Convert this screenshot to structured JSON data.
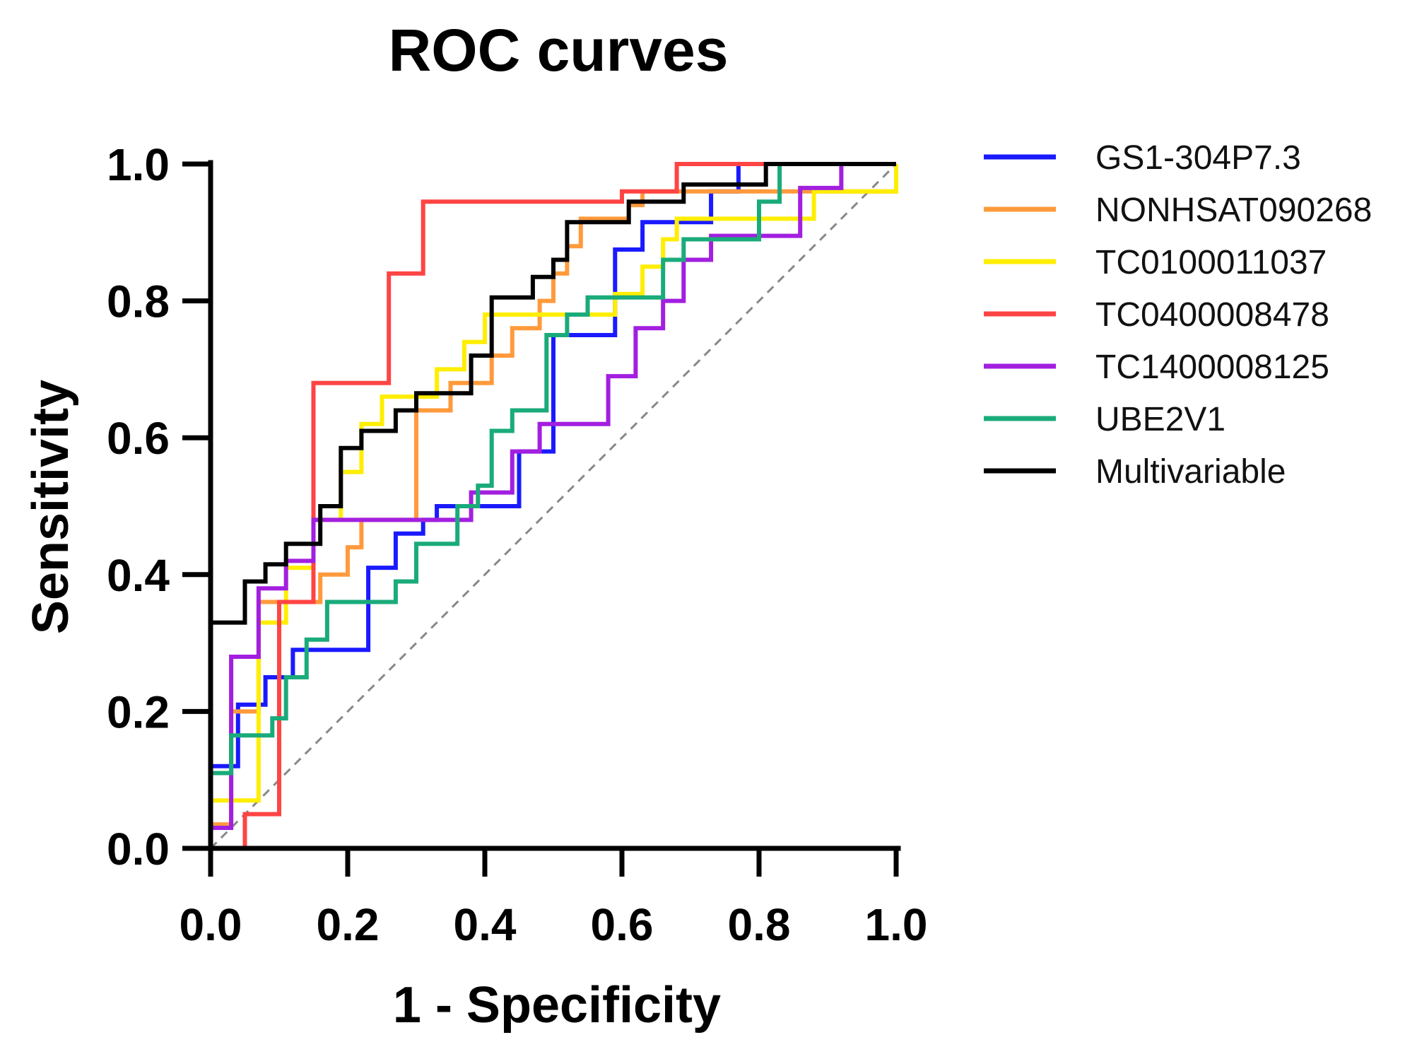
{
  "chart_data": {
    "type": "line",
    "title": "ROC curves",
    "xlabel": "1 - Specificity",
    "ylabel": "Sensitivity",
    "xlim": [
      0,
      1
    ],
    "ylim": [
      0,
      1
    ],
    "x_ticks": [
      "0.0",
      "0.2",
      "0.4",
      "0.6",
      "0.8",
      "1.0"
    ],
    "y_ticks": [
      "0.0",
      "0.2",
      "0.4",
      "0.6",
      "0.8",
      "1.0"
    ],
    "grid": false,
    "legend_position": "top-right outside",
    "reference_line": {
      "style": "dashed",
      "color": "#888888",
      "from": [
        0,
        0
      ],
      "to": [
        1,
        1
      ]
    },
    "series": [
      {
        "name": "GS1-304P7.3",
        "color": "#1a1aff",
        "points": [
          [
            0,
            0.12
          ],
          [
            0.04,
            0.12
          ],
          [
            0.04,
            0.21
          ],
          [
            0.08,
            0.21
          ],
          [
            0.08,
            0.25
          ],
          [
            0.12,
            0.25
          ],
          [
            0.12,
            0.29
          ],
          [
            0.23,
            0.29
          ],
          [
            0.23,
            0.41
          ],
          [
            0.27,
            0.41
          ],
          [
            0.27,
            0.46
          ],
          [
            0.31,
            0.46
          ],
          [
            0.31,
            0.48
          ],
          [
            0.33,
            0.48
          ],
          [
            0.33,
            0.5
          ],
          [
            0.45,
            0.5
          ],
          [
            0.45,
            0.58
          ],
          [
            0.5,
            0.58
          ],
          [
            0.5,
            0.75
          ],
          [
            0.59,
            0.75
          ],
          [
            0.59,
            0.875
          ],
          [
            0.63,
            0.875
          ],
          [
            0.63,
            0.915
          ],
          [
            0.73,
            0.915
          ],
          [
            0.73,
            0.96
          ],
          [
            0.77,
            0.96
          ],
          [
            0.77,
            1.0
          ],
          [
            1.0,
            1.0
          ]
        ]
      },
      {
        "name": "NONHSAT090268",
        "color": "#ff9a3c",
        "points": [
          [
            0,
            0.035
          ],
          [
            0.03,
            0.035
          ],
          [
            0.03,
            0.2
          ],
          [
            0.07,
            0.2
          ],
          [
            0.07,
            0.36
          ],
          [
            0.16,
            0.36
          ],
          [
            0.16,
            0.4
          ],
          [
            0.2,
            0.4
          ],
          [
            0.2,
            0.44
          ],
          [
            0.22,
            0.44
          ],
          [
            0.22,
            0.48
          ],
          [
            0.3,
            0.48
          ],
          [
            0.3,
            0.64
          ],
          [
            0.35,
            0.64
          ],
          [
            0.35,
            0.68
          ],
          [
            0.41,
            0.68
          ],
          [
            0.41,
            0.72
          ],
          [
            0.44,
            0.72
          ],
          [
            0.44,
            0.76
          ],
          [
            0.48,
            0.76
          ],
          [
            0.48,
            0.8
          ],
          [
            0.5,
            0.8
          ],
          [
            0.5,
            0.84
          ],
          [
            0.52,
            0.84
          ],
          [
            0.52,
            0.88
          ],
          [
            0.54,
            0.88
          ],
          [
            0.54,
            0.92
          ],
          [
            0.61,
            0.92
          ],
          [
            0.61,
            0.94
          ],
          [
            0.63,
            0.94
          ],
          [
            0.63,
            0.96
          ],
          [
            1.0,
            0.96
          ],
          [
            1.0,
            1.0
          ]
        ]
      },
      {
        "name": "TC0100011037",
        "color": "#ffee00",
        "points": [
          [
            0,
            0.07
          ],
          [
            0.07,
            0.07
          ],
          [
            0.07,
            0.33
          ],
          [
            0.11,
            0.33
          ],
          [
            0.11,
            0.41
          ],
          [
            0.15,
            0.41
          ],
          [
            0.15,
            0.48
          ],
          [
            0.19,
            0.48
          ],
          [
            0.19,
            0.55
          ],
          [
            0.22,
            0.55
          ],
          [
            0.22,
            0.62
          ],
          [
            0.25,
            0.62
          ],
          [
            0.25,
            0.66
          ],
          [
            0.33,
            0.66
          ],
          [
            0.33,
            0.7
          ],
          [
            0.37,
            0.7
          ],
          [
            0.37,
            0.74
          ],
          [
            0.4,
            0.74
          ],
          [
            0.4,
            0.78
          ],
          [
            0.59,
            0.78
          ],
          [
            0.59,
            0.81
          ],
          [
            0.63,
            0.81
          ],
          [
            0.63,
            0.85
          ],
          [
            0.66,
            0.85
          ],
          [
            0.66,
            0.89
          ],
          [
            0.68,
            0.89
          ],
          [
            0.68,
            0.92
          ],
          [
            0.88,
            0.92
          ],
          [
            0.88,
            0.96
          ],
          [
            1.0,
            0.96
          ],
          [
            1.0,
            1.0
          ]
        ]
      },
      {
        "name": "TC0400008478",
        "color": "#ff4444",
        "points": [
          [
            0,
            0
          ],
          [
            0.05,
            0
          ],
          [
            0.05,
            0.05
          ],
          [
            0.1,
            0.05
          ],
          [
            0.1,
            0.36
          ],
          [
            0.15,
            0.36
          ],
          [
            0.15,
            0.68
          ],
          [
            0.26,
            0.68
          ],
          [
            0.26,
            0.84
          ],
          [
            0.31,
            0.84
          ],
          [
            0.31,
            0.945
          ],
          [
            0.6,
            0.945
          ],
          [
            0.6,
            0.96
          ],
          [
            0.68,
            0.96
          ],
          [
            0.68,
            1.0
          ],
          [
            1.0,
            1.0
          ]
        ]
      },
      {
        "name": "TC1400008125",
        "color": "#a21fe0",
        "points": [
          [
            0,
            0.03
          ],
          [
            0.03,
            0.03
          ],
          [
            0.03,
            0.28
          ],
          [
            0.07,
            0.28
          ],
          [
            0.07,
            0.38
          ],
          [
            0.11,
            0.38
          ],
          [
            0.11,
            0.42
          ],
          [
            0.15,
            0.42
          ],
          [
            0.15,
            0.48
          ],
          [
            0.38,
            0.48
          ],
          [
            0.38,
            0.52
          ],
          [
            0.44,
            0.52
          ],
          [
            0.44,
            0.58
          ],
          [
            0.48,
            0.58
          ],
          [
            0.48,
            0.62
          ],
          [
            0.58,
            0.62
          ],
          [
            0.58,
            0.69
          ],
          [
            0.62,
            0.69
          ],
          [
            0.62,
            0.76
          ],
          [
            0.66,
            0.76
          ],
          [
            0.66,
            0.8
          ],
          [
            0.69,
            0.8
          ],
          [
            0.69,
            0.86
          ],
          [
            0.73,
            0.86
          ],
          [
            0.73,
            0.895
          ],
          [
            0.86,
            0.895
          ],
          [
            0.86,
            0.965
          ],
          [
            0.92,
            0.965
          ],
          [
            0.92,
            1.0
          ],
          [
            1.0,
            1.0
          ]
        ]
      },
      {
        "name": "UBE2V1",
        "color": "#1aab7a",
        "points": [
          [
            0,
            0.11
          ],
          [
            0.03,
            0.11
          ],
          [
            0.03,
            0.165
          ],
          [
            0.09,
            0.165
          ],
          [
            0.09,
            0.19
          ],
          [
            0.11,
            0.19
          ],
          [
            0.11,
            0.25
          ],
          [
            0.14,
            0.25
          ],
          [
            0.14,
            0.305
          ],
          [
            0.17,
            0.305
          ],
          [
            0.17,
            0.36
          ],
          [
            0.27,
            0.36
          ],
          [
            0.27,
            0.39
          ],
          [
            0.3,
            0.39
          ],
          [
            0.3,
            0.445
          ],
          [
            0.36,
            0.445
          ],
          [
            0.36,
            0.5
          ],
          [
            0.39,
            0.5
          ],
          [
            0.39,
            0.53
          ],
          [
            0.41,
            0.53
          ],
          [
            0.41,
            0.61
          ],
          [
            0.44,
            0.61
          ],
          [
            0.44,
            0.64
          ],
          [
            0.49,
            0.64
          ],
          [
            0.49,
            0.75
          ],
          [
            0.52,
            0.75
          ],
          [
            0.52,
            0.78
          ],
          [
            0.55,
            0.78
          ],
          [
            0.55,
            0.805
          ],
          [
            0.66,
            0.805
          ],
          [
            0.66,
            0.86
          ],
          [
            0.69,
            0.86
          ],
          [
            0.69,
            0.89
          ],
          [
            0.8,
            0.89
          ],
          [
            0.8,
            0.945
          ],
          [
            0.83,
            0.945
          ],
          [
            0.83,
            1.0
          ],
          [
            1.0,
            1.0
          ]
        ]
      },
      {
        "name": "Multivariable",
        "color": "#000000",
        "points": [
          [
            0,
            0.33
          ],
          [
            0.05,
            0.33
          ],
          [
            0.05,
            0.39
          ],
          [
            0.08,
            0.39
          ],
          [
            0.08,
            0.415
          ],
          [
            0.11,
            0.415
          ],
          [
            0.11,
            0.445
          ],
          [
            0.16,
            0.445
          ],
          [
            0.16,
            0.5
          ],
          [
            0.19,
            0.5
          ],
          [
            0.19,
            0.585
          ],
          [
            0.22,
            0.585
          ],
          [
            0.22,
            0.61
          ],
          [
            0.27,
            0.61
          ],
          [
            0.27,
            0.64
          ],
          [
            0.3,
            0.64
          ],
          [
            0.3,
            0.665
          ],
          [
            0.38,
            0.665
          ],
          [
            0.38,
            0.72
          ],
          [
            0.41,
            0.72
          ],
          [
            0.41,
            0.805
          ],
          [
            0.47,
            0.805
          ],
          [
            0.47,
            0.835
          ],
          [
            0.5,
            0.835
          ],
          [
            0.5,
            0.86
          ],
          [
            0.52,
            0.86
          ],
          [
            0.52,
            0.915
          ],
          [
            0.61,
            0.915
          ],
          [
            0.61,
            0.945
          ],
          [
            0.69,
            0.945
          ],
          [
            0.69,
            0.97
          ],
          [
            0.81,
            0.97
          ],
          [
            0.81,
            1.0
          ],
          [
            1.0,
            1.0
          ]
        ]
      }
    ]
  }
}
